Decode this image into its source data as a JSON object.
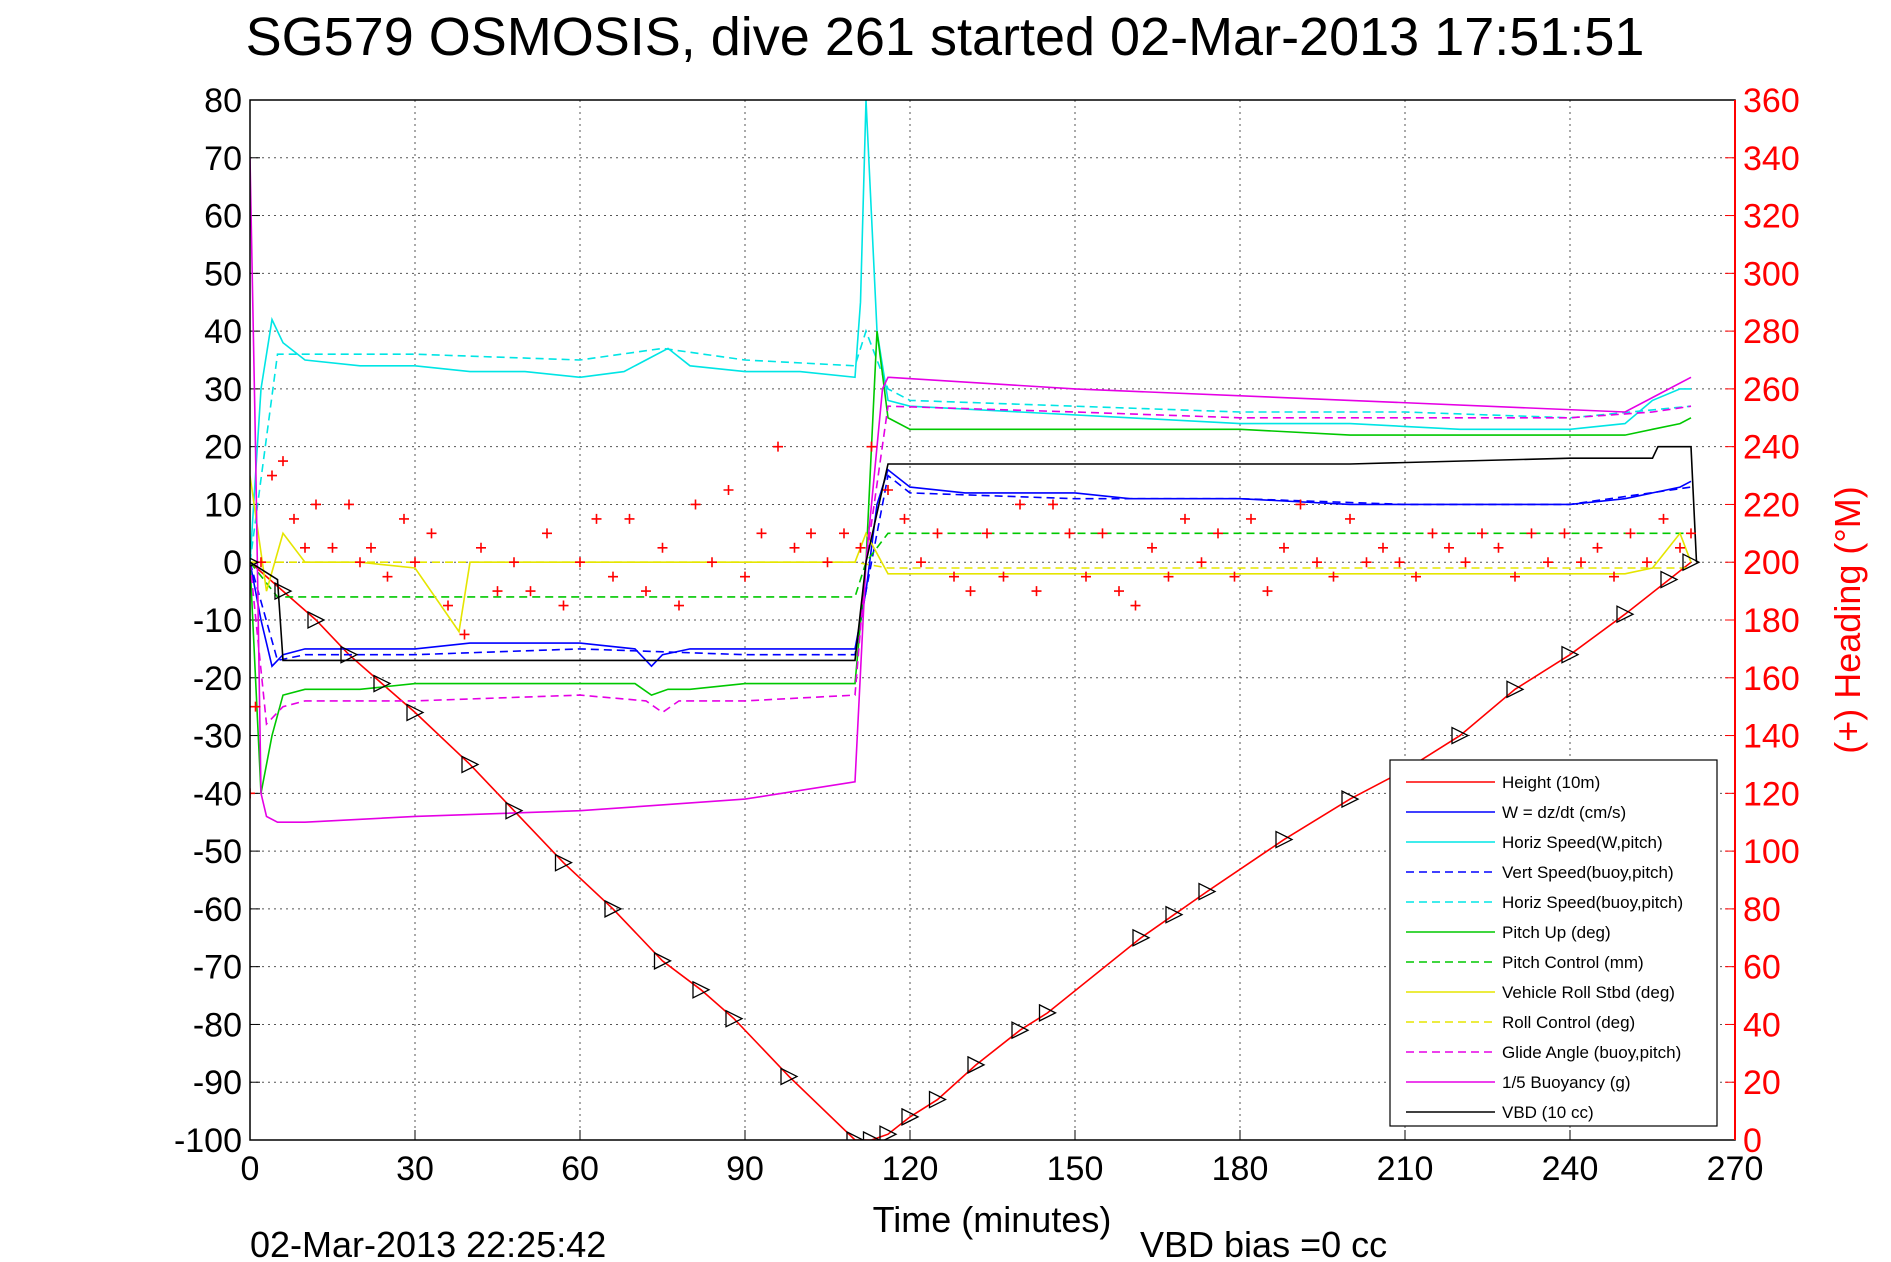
{
  "chart_data": {
    "type": "line",
    "title": "SG579 OSMOSIS, dive 261 started 02-Mar-2013 17:51:51",
    "xlabel": "Time (minutes)",
    "ylabel": "",
    "ylabel_right": "(+) Heading (°M)",
    "xlim": [
      0,
      270
    ],
    "ylim": [
      -100,
      80
    ],
    "ylim_right": [
      0,
      360
    ],
    "x_ticks": [
      0,
      30,
      60,
      90,
      120,
      150,
      180,
      210,
      240,
      270
    ],
    "y_ticks": [
      -100,
      -90,
      -80,
      -70,
      -60,
      -50,
      -40,
      -30,
      -20,
      -10,
      0,
      10,
      20,
      30,
      40,
      50,
      60,
      70,
      80
    ],
    "y_ticks_right": [
      0,
      20,
      40,
      60,
      80,
      100,
      120,
      140,
      160,
      180,
      200,
      220,
      240,
      260,
      280,
      300,
      320,
      340,
      360
    ],
    "grid": true,
    "legend_position": "bottom-right",
    "footer_left": "02-Mar-2013 22:25:42",
    "footer_right": "VBD bias =0 cc",
    "series": [
      {
        "name": "Height (10m)",
        "color": "#ff0000",
        "style": "solid",
        "x": [
          0,
          6,
          12,
          18,
          24,
          30,
          40,
          48,
          57,
          66,
          75,
          82,
          88,
          98,
          110,
          113,
          116,
          120,
          125,
          132,
          140,
          145,
          162,
          168,
          174,
          188,
          200,
          210,
          220,
          230,
          240,
          250,
          258,
          262
        ],
        "y": [
          0,
          -5,
          -10,
          -16,
          -21,
          -26,
          -35,
          -43,
          -52,
          -60,
          -69,
          -74,
          -79,
          -89,
          -100,
          -100,
          -99,
          -96,
          -93,
          -87,
          -81,
          -78,
          -65,
          -61,
          -57,
          -48,
          -41,
          -36,
          -30,
          -22,
          -16,
          -9,
          -3,
          0
        ]
      },
      {
        "name": "W = dz/dt (cm/s)",
        "color": "#0000ff",
        "style": "solid",
        "x": [
          0,
          2,
          4,
          6,
          10,
          20,
          30,
          40,
          50,
          60,
          70,
          73,
          75,
          80,
          90,
          100,
          110,
          112,
          114,
          116,
          120,
          130,
          140,
          150,
          160,
          180,
          200,
          220,
          240,
          250,
          255,
          260,
          262
        ],
        "y": [
          0,
          -10,
          -18,
          -16,
          -15,
          -15,
          -15,
          -14,
          -14,
          -14,
          -15,
          -18,
          -16,
          -15,
          -15,
          -15,
          -15,
          -5,
          10,
          16,
          13,
          12,
          12,
          12,
          11,
          11,
          10,
          10,
          10,
          11,
          12,
          13,
          14
        ]
      },
      {
        "name": "Horiz Speed(W,pitch)",
        "color": "#00e5e5",
        "style": "solid",
        "x": [
          0,
          2,
          4,
          6,
          10,
          20,
          30,
          40,
          50,
          60,
          68,
          72,
          76,
          80,
          90,
          100,
          110,
          111,
          112,
          113,
          114,
          116,
          120,
          140,
          160,
          180,
          200,
          220,
          240,
          250,
          255,
          260,
          262
        ],
        "y": [
          0,
          30,
          42,
          38,
          35,
          34,
          34,
          33,
          33,
          32,
          33,
          35,
          37,
          34,
          33,
          33,
          32,
          45,
          80,
          60,
          40,
          28,
          27,
          26,
          25,
          24,
          24,
          23,
          23,
          24,
          28,
          30,
          30
        ]
      },
      {
        "name": "Vert Speed(buoy,pitch)",
        "color": "#0000ff",
        "style": "dashed",
        "x": [
          0,
          5,
          10,
          30,
          60,
          90,
          110,
          112,
          116,
          120,
          150,
          180,
          210,
          240,
          262
        ],
        "y": [
          0,
          -17,
          -16,
          -16,
          -15,
          -16,
          -16,
          -5,
          15,
          12,
          11,
          11,
          10,
          10,
          13
        ]
      },
      {
        "name": "Horiz Speed(buoy,pitch)",
        "color": "#00e5e5",
        "style": "dashed",
        "x": [
          0,
          5,
          10,
          30,
          60,
          75,
          90,
          110,
          112,
          116,
          120,
          150,
          180,
          210,
          240,
          262
        ],
        "y": [
          0,
          36,
          36,
          36,
          35,
          37,
          35,
          34,
          40,
          30,
          28,
          27,
          26,
          26,
          25,
          27
        ]
      },
      {
        "name": "Pitch Up (deg)",
        "color": "#00c800",
        "style": "solid",
        "x": [
          0,
          2,
          4,
          6,
          10,
          20,
          30,
          40,
          50,
          60,
          70,
          73,
          76,
          80,
          90,
          100,
          110,
          112,
          114,
          116,
          120,
          140,
          160,
          180,
          200,
          220,
          240,
          250,
          255,
          260,
          262
        ],
        "y": [
          0,
          -40,
          -30,
          -23,
          -22,
          -22,
          -21,
          -21,
          -21,
          -21,
          -21,
          -23,
          -22,
          -22,
          -21,
          -21,
          -21,
          0,
          40,
          25,
          23,
          23,
          23,
          23,
          22,
          22,
          22,
          22,
          23,
          24,
          25
        ]
      },
      {
        "name": "Pitch Control (mm)",
        "color": "#00c800",
        "style": "dashed",
        "x": [
          0,
          5,
          30,
          60,
          90,
          110,
          112,
          116,
          150,
          200,
          240,
          262
        ],
        "y": [
          0,
          -6,
          -6,
          -6,
          -6,
          -6,
          0,
          5,
          5,
          5,
          5,
          5
        ]
      },
      {
        "name": "Vehicle Roll Stbd (deg)",
        "color": "#e5e500",
        "style": "solid",
        "x": [
          0,
          3,
          6,
          10,
          20,
          30,
          38,
          40,
          50,
          60,
          70,
          80,
          90,
          100,
          110,
          112,
          116,
          120,
          140,
          160,
          180,
          200,
          220,
          240,
          250,
          255,
          260,
          262
        ],
        "y": [
          15,
          -5,
          5,
          0,
          0,
          -1,
          -12,
          0,
          0,
          0,
          0,
          0,
          0,
          0,
          0,
          5,
          -2,
          -2,
          -2,
          -2,
          -2,
          -2,
          -2,
          -2,
          -2,
          -1,
          5,
          0
        ]
      },
      {
        "name": "Roll Control (deg)",
        "color": "#e5e500",
        "style": "dashed",
        "x": [
          0,
          30,
          60,
          90,
          110,
          116,
          150,
          200,
          262
        ],
        "y": [
          0,
          0,
          0,
          0,
          0,
          -1,
          -1,
          -1,
          -1
        ]
      },
      {
        "name": "Glide Angle (buoy,pitch)",
        "color": "#e500e5",
        "style": "dashed",
        "x": [
          0,
          3,
          6,
          10,
          30,
          60,
          72,
          75,
          78,
          90,
          110,
          112,
          116,
          150,
          180,
          210,
          240,
          255,
          262
        ],
        "y": [
          0,
          -28,
          -25,
          -24,
          -24,
          -23,
          -24,
          -26,
          -24,
          -24,
          -23,
          0,
          27,
          26,
          25,
          25,
          25,
          26,
          27
        ]
      },
      {
        "name": "1/5 Buoyancy (g)",
        "color": "#e500e5",
        "style": "solid",
        "x": [
          0,
          1,
          2,
          3,
          5,
          10,
          30,
          60,
          90,
          110,
          112,
          115,
          116,
          150,
          200,
          250,
          262
        ],
        "y": [
          70,
          20,
          -40,
          -44,
          -45,
          -45,
          -44,
          -43,
          -41,
          -38,
          0,
          30,
          32,
          30,
          28,
          26,
          32
        ]
      },
      {
        "name": "VBD (10 cc)",
        "color": "#000000",
        "style": "solid",
        "x": [
          0,
          5,
          6,
          30,
          60,
          90,
          110,
          112,
          116,
          117,
          150,
          200,
          240,
          255,
          256,
          262,
          263
        ],
        "y": [
          0,
          -3,
          -17,
          -17,
          -17,
          -17,
          -17,
          0,
          17,
          17,
          17,
          17,
          18,
          18,
          20,
          20,
          0
        ]
      }
    ],
    "heading": {
      "name": "(+) Heading (°M)",
      "color": "#ff0000",
      "axis": "right",
      "x": [
        0,
        1,
        2,
        4,
        6,
        8,
        10,
        12,
        15,
        18,
        20,
        22,
        25,
        28,
        30,
        33,
        36,
        39,
        42,
        45,
        48,
        51,
        54,
        57,
        60,
        63,
        66,
        69,
        72,
        75,
        78,
        81,
        84,
        87,
        90,
        93,
        96,
        99,
        102,
        105,
        108,
        111,
        113,
        116,
        119,
        122,
        125,
        128,
        131,
        134,
        137,
        140,
        143,
        146,
        149,
        152,
        155,
        158,
        161,
        164,
        167,
        170,
        173,
        176,
        179,
        182,
        185,
        188,
        191,
        194,
        197,
        200,
        203,
        206,
        209,
        212,
        215,
        218,
        221,
        224,
        227,
        230,
        233,
        236,
        239,
        242,
        245,
        248,
        251,
        254,
        257,
        260,
        262
      ],
      "y": [
        120,
        150,
        200,
        230,
        235,
        215,
        205,
        220,
        205,
        220,
        200,
        205,
        195,
        215,
        200,
        210,
        185,
        175,
        205,
        190,
        200,
        190,
        210,
        185,
        200,
        215,
        195,
        215,
        190,
        205,
        185,
        220,
        200,
        225,
        195,
        210,
        240,
        205,
        210,
        200,
        210,
        205,
        240,
        225,
        215,
        200,
        210,
        195,
        190,
        210,
        195,
        220,
        190,
        220,
        210,
        195,
        210,
        190,
        185,
        205,
        195,
        215,
        200,
        210,
        195,
        215,
        190,
        205,
        220,
        200,
        195,
        215,
        200,
        205,
        200,
        195,
        210,
        205,
        200,
        210,
        205,
        195,
        210,
        200,
        210,
        200,
        205,
        195,
        210,
        200,
        215,
        205,
        210
      ]
    }
  }
}
